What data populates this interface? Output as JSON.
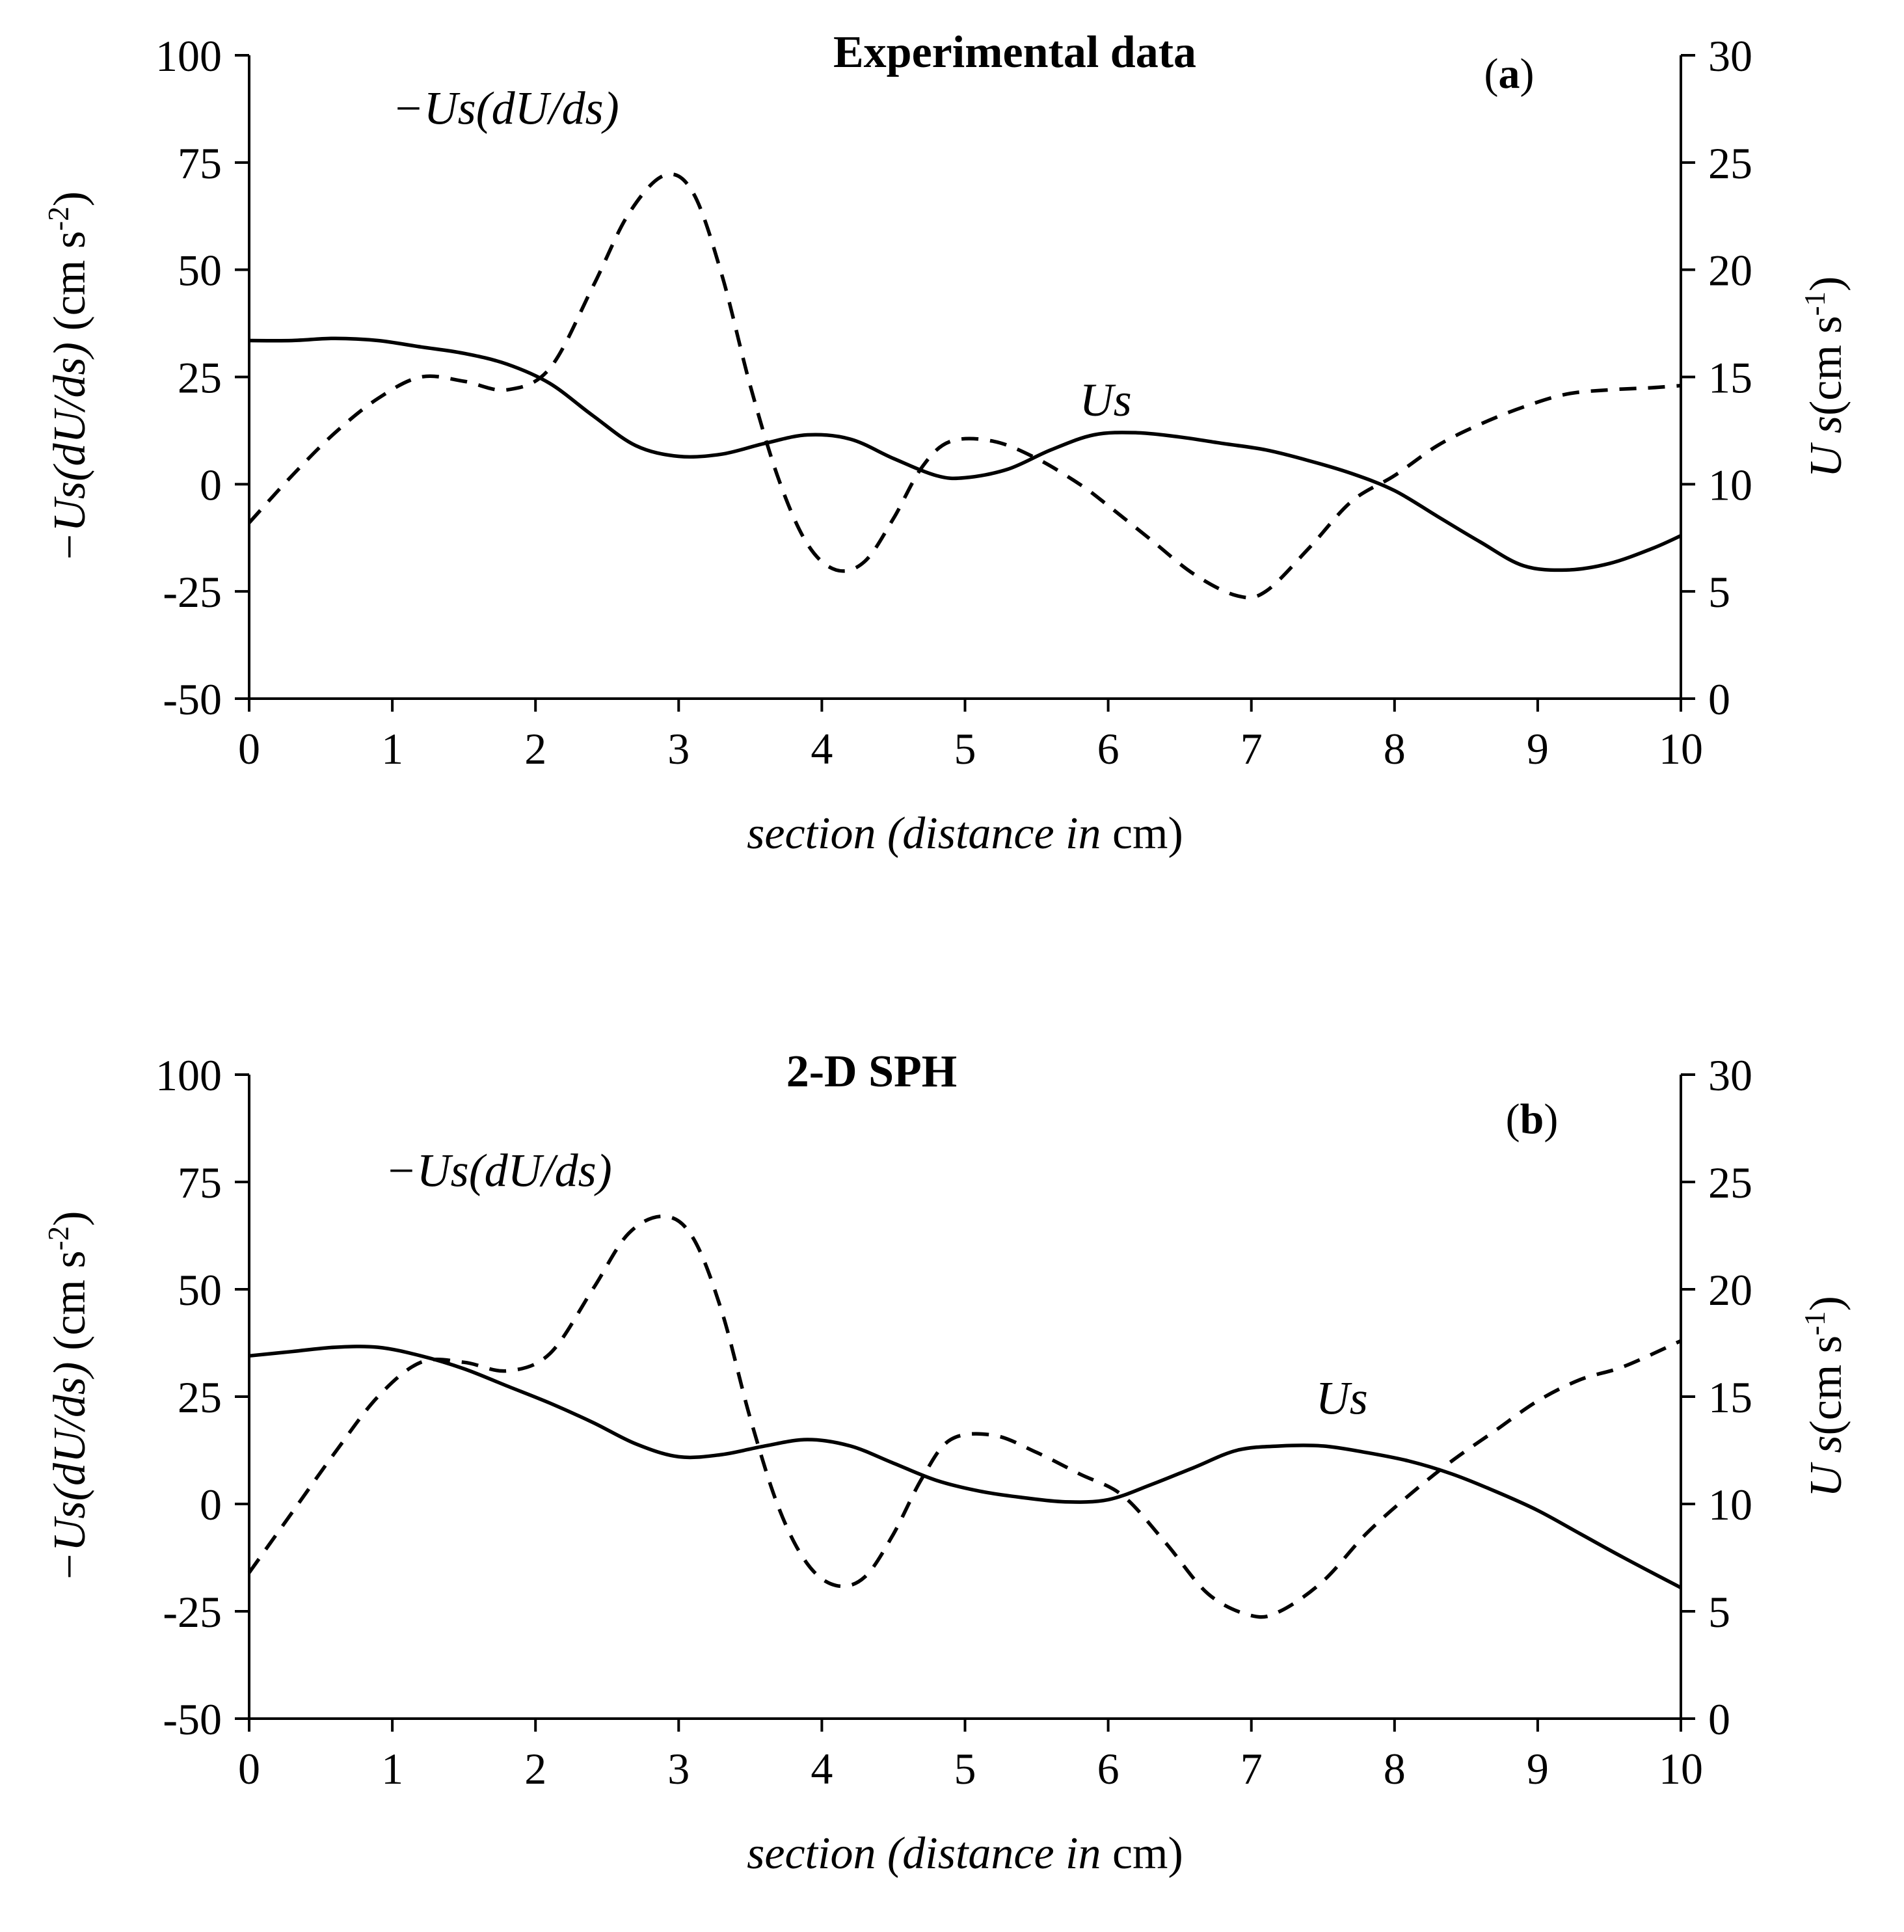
{
  "chart_data": [
    {
      "type": "line",
      "title": "Experimental data",
      "panel_label": "a",
      "xlabel_parts": [
        {
          "text": "section (distance in ",
          "italic": true
        },
        {
          "text": "cm)",
          "italic": false
        }
      ],
      "ylabel_left_parts": [
        {
          "text": "−Us(dU/ds)",
          "italic": true
        },
        {
          "text": " (cm s",
          "italic": false
        },
        {
          "text": "-2",
          "sup": true
        },
        {
          "text": ")",
          "italic": false
        }
      ],
      "ylabel_right_parts": [
        {
          "text": "U",
          "italic": true
        },
        {
          "text": " s",
          "italic": true
        },
        {
          "text": "(cm s",
          "italic": false
        },
        {
          "text": "-1",
          "sup": true
        },
        {
          "text": ")",
          "italic": false
        }
      ],
      "xlim": [
        0,
        10
      ],
      "ylim_left": [
        -50,
        100
      ],
      "ylim_right": [
        0,
        30
      ],
      "x_ticks": [
        0,
        1,
        2,
        3,
        4,
        5,
        6,
        7,
        8,
        9,
        10
      ],
      "y_left_ticks": [
        -50,
        -25,
        0,
        25,
        50,
        75,
        100
      ],
      "y_right_ticks": [
        0,
        5,
        10,
        15,
        20,
        25,
        30
      ],
      "series": [
        {
          "name": "−Us(dU/ds)",
          "axis": "left",
          "style": "dashed",
          "label": "−Us(dU/ds)",
          "label_at": [
            1.0,
            84
          ],
          "x": [
            0,
            0.3,
            0.6,
            0.9,
            1.2,
            1.5,
            1.8,
            2.1,
            2.4,
            2.65,
            2.9,
            3.1,
            3.3,
            3.5,
            3.7,
            3.9,
            4.1,
            4.3,
            4.5,
            4.7,
            4.9,
            5.2,
            5.5,
            5.8,
            6.0,
            6.3,
            6.6,
            6.9,
            7.1,
            7.4,
            7.7,
            8.0,
            8.3,
            8.6,
            8.9,
            9.2,
            9.5,
            9.8,
            10
          ],
          "y": [
            -9,
            2,
            12,
            20,
            25,
            24,
            22,
            27,
            46,
            63,
            72,
            68,
            49,
            23,
            1,
            -14,
            -20,
            -18,
            -8,
            4,
            10,
            10,
            6,
            0,
            -5,
            -13,
            -21,
            -26,
            -25,
            -15,
            -4,
            2,
            9,
            14,
            18,
            21,
            22,
            22.5,
            23
          ]
        },
        {
          "name": "Us",
          "axis": "right",
          "style": "solid",
          "label": "Us",
          "label_at": [
            5.8,
            13.2
          ],
          "x": [
            0,
            0.3,
            0.6,
            0.9,
            1.2,
            1.5,
            1.8,
            2.1,
            2.4,
            2.7,
            3.0,
            3.3,
            3.6,
            3.9,
            4.2,
            4.5,
            4.8,
            5.0,
            5.3,
            5.6,
            5.9,
            6.2,
            6.5,
            6.8,
            7.1,
            7.4,
            7.7,
            8.0,
            8.3,
            8.6,
            8.9,
            9.2,
            9.5,
            9.8,
            10
          ],
          "y": [
            16.7,
            16.7,
            16.8,
            16.7,
            16.4,
            16.1,
            15.6,
            14.7,
            13.2,
            11.8,
            11.3,
            11.4,
            11.9,
            12.3,
            12.1,
            11.2,
            10.4,
            10.3,
            10.7,
            11.6,
            12.3,
            12.4,
            12.2,
            11.9,
            11.6,
            11.1,
            10.5,
            9.7,
            8.5,
            7.3,
            6.2,
            6.0,
            6.3,
            7.0,
            7.6
          ]
        }
      ]
    },
    {
      "type": "line",
      "title": "2-D SPH",
      "panel_label": "b",
      "xlabel_parts": [
        {
          "text": "section (distance in ",
          "italic": true
        },
        {
          "text": "cm)",
          "italic": false
        }
      ],
      "ylabel_left_parts": [
        {
          "text": "−Us(dU/ds)",
          "italic": true
        },
        {
          "text": " (cm s",
          "italic": false
        },
        {
          "text": "-2",
          "sup": true
        },
        {
          "text": ")",
          "italic": false
        }
      ],
      "ylabel_right_parts": [
        {
          "text": "U",
          "italic": true
        },
        {
          "text": " s",
          "italic": true
        },
        {
          "text": "(cm s",
          "italic": false
        },
        {
          "text": "-1",
          "sup": true
        },
        {
          "text": ")",
          "italic": false
        }
      ],
      "xlim": [
        0,
        10
      ],
      "ylim_left": [
        -50,
        100
      ],
      "ylim_right": [
        0,
        30
      ],
      "x_ticks": [
        0,
        1,
        2,
        3,
        4,
        5,
        6,
        7,
        8,
        9,
        10
      ],
      "y_left_ticks": [
        -50,
        -25,
        0,
        25,
        50,
        75,
        100
      ],
      "y_right_ticks": [
        0,
        5,
        10,
        15,
        20,
        25,
        30
      ],
      "series": [
        {
          "name": "−Us(dU/ds)",
          "axis": "left",
          "style": "dashed",
          "label": "−Us(dU/ds)",
          "label_at": [
            0.95,
            74
          ],
          "x": [
            0,
            0.3,
            0.6,
            0.9,
            1.2,
            1.5,
            1.8,
            2.1,
            2.4,
            2.65,
            2.9,
            3.1,
            3.3,
            3.5,
            3.7,
            3.9,
            4.1,
            4.3,
            4.5,
            4.7,
            4.9,
            5.2,
            5.5,
            5.8,
            6.1,
            6.4,
            6.7,
            7.0,
            7.2,
            7.5,
            7.8,
            8.1,
            8.4,
            8.7,
            9.0,
            9.3,
            9.6,
            10
          ],
          "y": [
            -16,
            -2,
            12,
            25,
            33,
            33,
            31,
            35,
            50,
            63,
            67,
            62,
            45,
            20,
            -1,
            -14,
            -19,
            -17,
            -7,
            6,
            15,
            16,
            12,
            7,
            2,
            -9,
            -21,
            -26,
            -25,
            -18,
            -7,
            2,
            10,
            17,
            24,
            29,
            32,
            38
          ]
        },
        {
          "name": "Us",
          "axis": "right",
          "style": "solid",
          "label": "Us",
          "label_at": [
            7.45,
            14.2
          ],
          "x": [
            0,
            0.3,
            0.6,
            0.9,
            1.2,
            1.5,
            1.8,
            2.1,
            2.4,
            2.7,
            3.0,
            3.3,
            3.6,
            3.9,
            4.2,
            4.5,
            4.8,
            5.1,
            5.4,
            5.7,
            6.0,
            6.3,
            6.6,
            6.9,
            7.2,
            7.5,
            7.8,
            8.1,
            8.4,
            8.7,
            9.0,
            9.3,
            9.6,
            10
          ],
          "y": [
            16.9,
            17.1,
            17.3,
            17.3,
            16.9,
            16.3,
            15.5,
            14.7,
            13.8,
            12.8,
            12.2,
            12.3,
            12.7,
            13.0,
            12.7,
            11.9,
            11.1,
            10.6,
            10.3,
            10.1,
            10.2,
            10.9,
            11.7,
            12.5,
            12.7,
            12.7,
            12.4,
            12.0,
            11.4,
            10.6,
            9.7,
            8.6,
            7.5,
            6.1
          ]
        }
      ]
    }
  ]
}
